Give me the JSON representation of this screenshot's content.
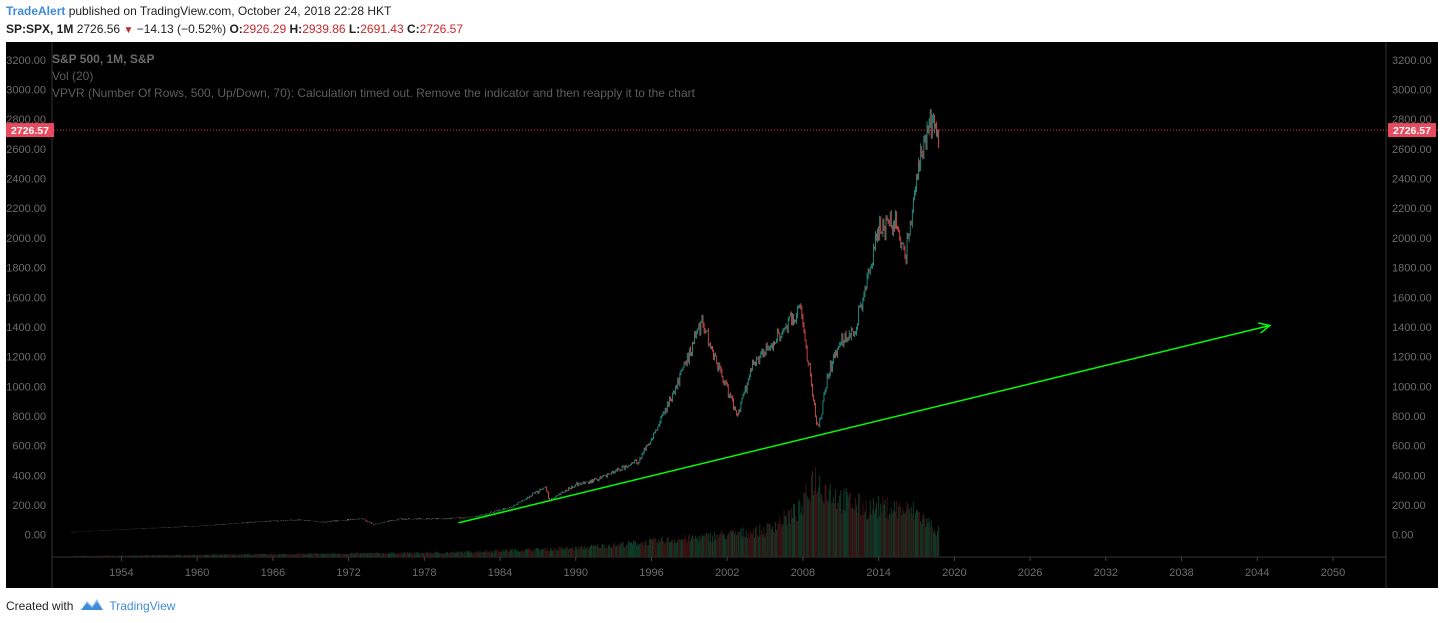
{
  "header": {
    "author": "TradeAlert",
    "published": "published on TradingView.com, October 24, 2018 22:28 HKT",
    "symbol": "SP:SPX, 1M",
    "last": "2726.56",
    "change": "−14.13 (−0.52%)",
    "o_label": "O:",
    "o_value": "2926.29",
    "h_label": "H:",
    "h_value": "2939.86",
    "l_label": "L:",
    "l_value": "2691.43",
    "c_label": "C:",
    "c_value": "2726.57"
  },
  "legend": {
    "title": "S&P 500, 1M, S&P",
    "vol": "Vol (20)",
    "vpvr": "VPVR (Number Of Rows, 500, Up/Down, 70): Calculation timed out. Remove the indicator and then reapply it to the chart"
  },
  "price_label": "2726.57",
  "footer": {
    "created": "Created with",
    "brand": "TradingView"
  },
  "colors": {
    "up": "#26a69a",
    "down": "#ef5350",
    "trend": "#00ff00",
    "price_line": "#f23645",
    "background": "#000000"
  },
  "chart_data": {
    "type": "candlestick-line",
    "title": "S&P 500, 1M, S&P",
    "y_ticks": [
      "0.00",
      "200.00",
      "400.00",
      "600.00",
      "800.00",
      "1000.00",
      "1200.00",
      "1400.00",
      "1600.00",
      "1800.00",
      "2000.00",
      "2200.00",
      "2400.00",
      "2600.00",
      "2800.00",
      "3000.00",
      "3200.00"
    ],
    "x_ticks": [
      "1954",
      "1960",
      "1966",
      "1972",
      "1978",
      "1984",
      "1990",
      "1996",
      "2002",
      "2008",
      "2014",
      "2020",
      "2026",
      "2032",
      "2038",
      "2044",
      "2050"
    ],
    "ylim": [
      -150,
      3320
    ],
    "xlim": [
      1948.5,
      2054.2
    ],
    "current_price": 2726.57,
    "series": [
      {
        "x": [
          1950,
          1955,
          1960,
          1965,
          1968,
          1970,
          1973,
          1974,
          1976,
          1980,
          1982,
          1985,
          1987.6,
          1987.9,
          1990,
          1991,
          1994,
          1995,
          1996,
          1998,
          2000,
          2001,
          2002.8,
          2004,
          2007.8,
          2009.2,
          2010,
          2011,
          2012,
          2013,
          2014,
          2015.4,
          2016.1,
          2017,
          2018,
          2018.8
        ],
        "y": [
          17,
          40,
          58,
          88,
          100,
          85,
          110,
          70,
          105,
          110,
          120,
          190,
          320,
          230,
          340,
          350,
          460,
          500,
          650,
          1000,
          1450,
          1200,
          800,
          1130,
          1520,
          700,
          1100,
          1300,
          1350,
          1700,
          2050,
          2120,
          1850,
          2400,
          2750,
          2726
        ]
      }
    ],
    "volume_points": {
      "x": [
        1950,
        1980,
        1990,
        2000,
        2005,
        2008,
        2008.8,
        2009.5,
        2011,
        2013,
        2015,
        2017,
        2018.6
      ],
      "y": [
        0.01,
        0.05,
        0.1,
        0.22,
        0.3,
        0.55,
        0.9,
        0.8,
        0.65,
        0.55,
        0.55,
        0.5,
        0.3
      ]
    },
    "trendline": {
      "x": [
        1980.7,
        2045
      ],
      "y": [
        80,
        1410
      ]
    }
  }
}
